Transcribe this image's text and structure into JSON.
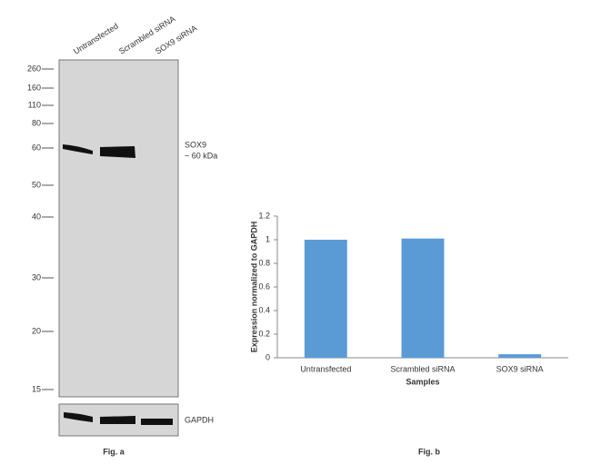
{
  "blot": {
    "lanes": [
      "Untransfected",
      "Scrambled siRNA",
      "SOX9 siRNA"
    ],
    "markers": [
      260,
      160,
      110,
      80,
      60,
      50,
      40,
      30,
      20,
      15
    ],
    "band_label": [
      "SOX9",
      "~ 60 kDa"
    ],
    "loading_label": "GAPDH",
    "caption": "Fig. a"
  },
  "chart_data": {
    "type": "bar",
    "categories": [
      "Untransfected",
      "Scrambled siRNA",
      "SOX9 siRNA"
    ],
    "values": [
      1,
      1.01,
      0.03
    ],
    "color": "#5b9bd5",
    "ylim": [
      0,
      1.2
    ],
    "yticks": [
      0,
      0.2,
      0.4,
      0.6,
      0.8,
      1,
      1.2
    ],
    "xlabel": "Samples",
    "ylabel": "Expression normalized to GAPDH",
    "caption": "Fig. b"
  }
}
